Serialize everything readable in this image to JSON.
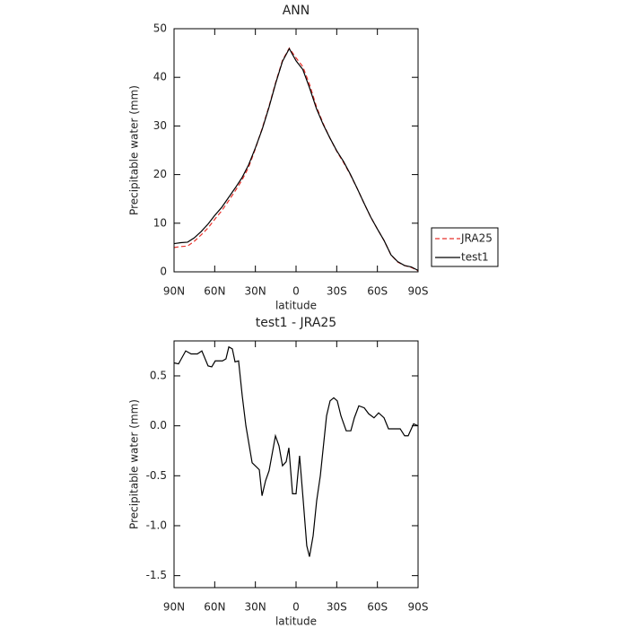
{
  "chart_data": [
    {
      "type": "line",
      "title": "ANN",
      "x_label": "latitude",
      "y_label": "Precipitable water (mm)",
      "x": [
        90,
        85,
        80,
        75,
        70,
        65,
        60,
        55,
        50,
        45,
        40,
        35,
        30,
        25,
        20,
        15,
        10,
        5,
        0,
        -5,
        -10,
        -15,
        -20,
        -25,
        -30,
        -35,
        -40,
        -45,
        -50,
        -55,
        -60,
        -65,
        -70,
        -75,
        -80,
        -85,
        -90
      ],
      "series": [
        {
          "name": "JRA25",
          "color": "#e8312b",
          "linestyle": "dashed",
          "values": [
            5.0,
            5.2,
            5.3,
            6.3,
            7.6,
            9.0,
            10.8,
            12.5,
            14.5,
            16.6,
            18.8,
            21.5,
            25.3,
            29.5,
            34.0,
            39.0,
            43.5,
            46.0,
            44.0,
            42.2,
            38.5,
            34.0,
            30.5,
            27.5,
            24.8,
            22.5,
            20.0,
            17.2,
            14.2,
            11.3,
            8.8,
            6.4,
            3.5,
            2.0,
            1.3,
            0.9,
            0.2
          ]
        },
        {
          "name": "test1",
          "color": "#000000",
          "linestyle": "solid",
          "values": [
            5.8,
            6.0,
            6.1,
            7.0,
            8.3,
            9.8,
            11.6,
            13.2,
            15.2,
            17.2,
            19.3,
            22.0,
            25.5,
            29.3,
            33.8,
            38.8,
            43.3,
            45.9,
            43.4,
            41.6,
            37.8,
            33.6,
            30.3,
            27.5,
            24.9,
            22.7,
            20.1,
            17.2,
            14.2,
            11.3,
            8.8,
            6.4,
            3.5,
            2.1,
            1.3,
            1.0,
            0.3
          ]
        }
      ],
      "xlim": [
        90,
        -90
      ],
      "xticks": [
        {
          "value": 90,
          "label": "90N"
        },
        {
          "value": 60,
          "label": "60N"
        },
        {
          "value": 30,
          "label": "30N"
        },
        0,
        {
          "value": -30,
          "label": "30S"
        },
        {
          "value": -60,
          "label": "60S"
        },
        {
          "value": -90,
          "label": "90S"
        }
      ],
      "ylim": [
        0,
        50
      ],
      "yticks": [
        0,
        10,
        20,
        30,
        40,
        50
      ],
      "legend": "right"
    },
    {
      "type": "line",
      "title": "test1 - JRA25",
      "x_label": "latitude",
      "y_label": "Precipitable water (mm)",
      "x": [
        90,
        86.7,
        81.4,
        77.4,
        72.8,
        69.5,
        64.9,
        62.2,
        59.6,
        54.3,
        51.7,
        49.6,
        47,
        45,
        42.4,
        39.7,
        37,
        32.4,
        27.1,
        25.1,
        22.5,
        19.9,
        15.2,
        12.6,
        10,
        7.3,
        5.3,
        2.6,
        0,
        -2.6,
        -5.3,
        -7.9,
        -9.9,
        -12.6,
        -15.2,
        -17.9,
        -22.5,
        -25.1,
        -27.8,
        -30.4,
        -33.1,
        -37,
        -40.4,
        -43,
        -46.3,
        -50.3,
        -53.6,
        -57.5,
        -60.9,
        -64.9,
        -68.2,
        -73.5,
        -76.8,
        -80.1,
        -82.7,
        -86.7,
        -90
      ],
      "values": [
        0.63,
        0.62,
        0.75,
        0.72,
        0.72,
        0.75,
        0.6,
        0.59,
        0.65,
        0.65,
        0.67,
        0.79,
        0.77,
        0.64,
        0.65,
        0.3,
        0.0,
        -0.37,
        -0.44,
        -0.7,
        -0.55,
        -0.45,
        -0.1,
        -0.2,
        -0.4,
        -0.36,
        -0.22,
        -0.68,
        -0.68,
        -0.3,
        -0.75,
        -1.2,
        -1.31,
        -1.1,
        -0.75,
        -0.5,
        0.1,
        0.25,
        0.28,
        0.25,
        0.1,
        -0.05,
        -0.05,
        0.08,
        0.2,
        0.18,
        0.12,
        0.08,
        0.13,
        0.08,
        -0.03,
        -0.03,
        -0.03,
        -0.1,
        -0.1,
        0.02,
        0.0
      ],
      "color": "#000000",
      "xlim": [
        90,
        -90
      ],
      "xticks": [
        {
          "value": 90,
          "label": "90N"
        },
        {
          "value": 60,
          "label": "60N"
        },
        {
          "value": 30,
          "label": "30N"
        },
        0,
        {
          "value": -30,
          "label": "30S"
        },
        {
          "value": -60,
          "label": "60S"
        },
        {
          "value": -90,
          "label": "90S"
        }
      ],
      "ylim": [
        -1.62,
        0.85
      ],
      "yticks": [
        -1.5,
        {
          "value": -1,
          "label": "-1.0"
        },
        -0.5,
        {
          "value": 0,
          "label": "0.0"
        },
        0.5
      ]
    }
  ]
}
